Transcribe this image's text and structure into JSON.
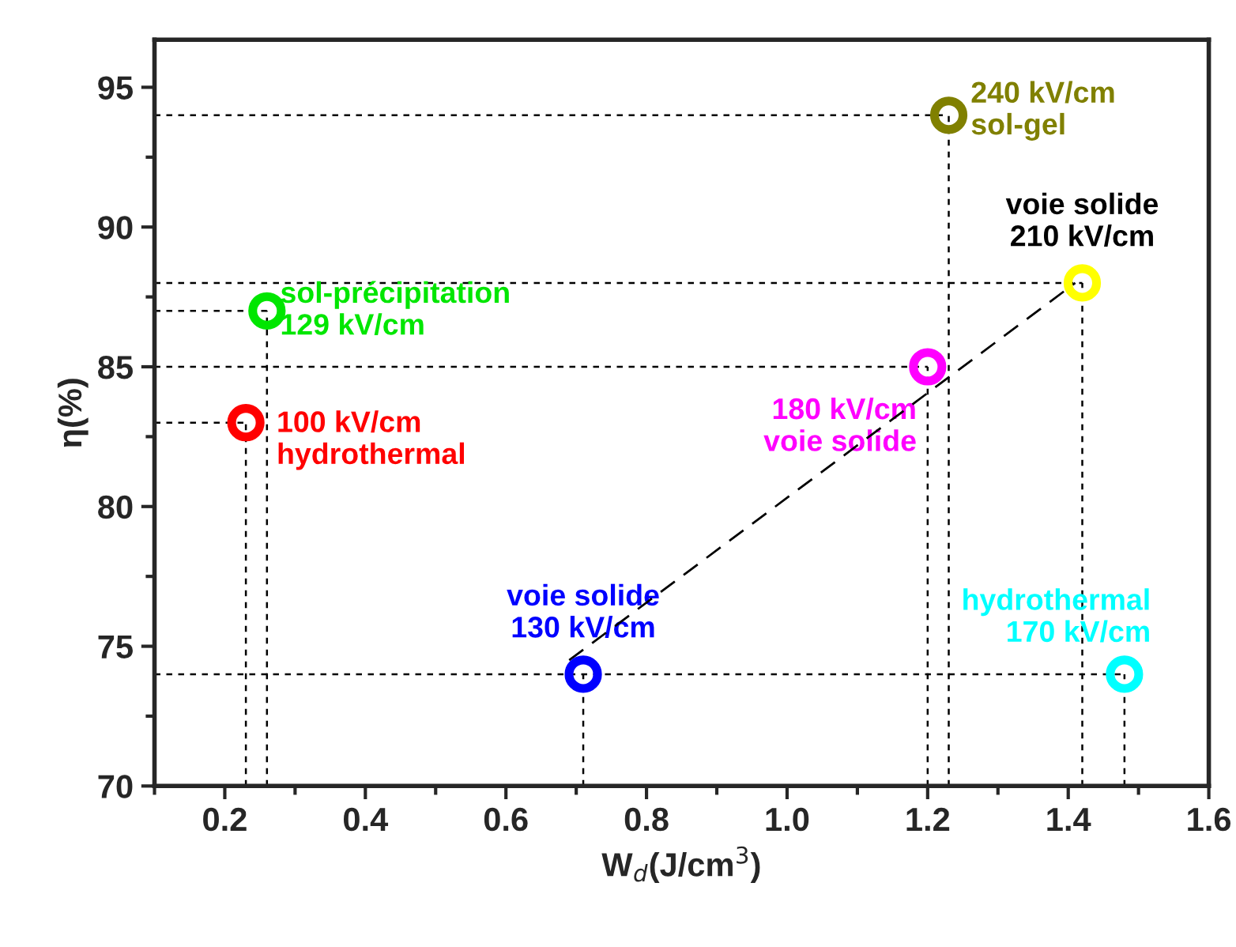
{
  "chart_data": {
    "type": "scatter",
    "xlabel": "W$_{d}$(J/cm$^{3}$)",
    "ylabel": "η(%)",
    "xlim": [
      0.1,
      1.6
    ],
    "xticks": [
      {
        "value": 0.2,
        "label": "0.2"
      },
      {
        "value": 0.4,
        "label": "0.4"
      },
      {
        "value": 0.6,
        "label": "0.6"
      },
      {
        "value": 0.8,
        "label": "0.8"
      },
      {
        "value": 1.0,
        "label": "1.0"
      },
      {
        "value": 1.2,
        "label": "1.2"
      },
      {
        "value": 1.4,
        "label": "1.4"
      },
      {
        "value": 1.6,
        "label": "1.6"
      }
    ],
    "ylim": [
      70,
      96.7
    ],
    "yticks": [
      70,
      75,
      80,
      85,
      90,
      95
    ],
    "marker": "circle",
    "legend": false,
    "ref_lines": [
      {
        "axis": "y",
        "value": 83,
        "color": "#000000",
        "line_style": "dotted"
      },
      {
        "axis": "y",
        "value": 87,
        "color": "#000000",
        "line_style": "dotted"
      },
      {
        "axis": "y",
        "value": 74,
        "color": "#000000",
        "line_style": "dotted"
      },
      {
        "axis": "y",
        "value": 85,
        "color": "#000000",
        "line_style": "dotted"
      },
      {
        "axis": "y",
        "value": 94,
        "color": "#000000",
        "line_style": "dotted"
      },
      {
        "axis": "y",
        "value": 88,
        "color": "#000000",
        "line_style": "dotted"
      },
      {
        "axis": "x",
        "value": 0.23,
        "color": "#000000",
        "line_style": "dotted"
      },
      {
        "axis": "x",
        "value": 0.26,
        "color": "#000000",
        "line_style": "dotted"
      },
      {
        "axis": "x",
        "value": 0.71,
        "color": "#000000",
        "line_style": "dotted"
      },
      {
        "axis": "x",
        "value": 1.2,
        "color": "#000000",
        "line_style": "dotted"
      },
      {
        "axis": "x",
        "value": 1.23,
        "color": "#000000",
        "line_style": "dotted"
      },
      {
        "axis": "x",
        "value": 1.42,
        "color": "#000000",
        "line_style": "dotted"
      },
      {
        "axis": "x",
        "value": 1.48,
        "color": "#000000",
        "line_style": "dotted"
      }
    ],
    "series": [
      {
        "name": "100 kV/cm\nhydrothermal",
        "color": "#ff0000",
        "x": [
          0.23
        ],
        "values": [
          83
        ]
      },
      {
        "name": "sol-précipitation\n129 kV/cm",
        "color": "#00e600",
        "x": [
          0.26
        ],
        "values": [
          87
        ]
      },
      {
        "name": "voie solide\n130 kV/cm",
        "color": "#0000ff",
        "x": [
          0.71
        ],
        "values": [
          74
        ]
      },
      {
        "name": "180 kV/cm\nvoie solide",
        "color": "#ff00ff",
        "x": [
          1.2
        ],
        "values": [
          85
        ]
      },
      {
        "name": "240 kV/cm\nsol-gel",
        "color": "#808000",
        "x": [
          1.23
        ],
        "values": [
          94
        ]
      },
      {
        "color": "#ffff00",
        "x": [
          1.42
        ],
        "values": [
          88
        ]
      },
      {
        "name": "hydrothermal\n170 kV/cm",
        "color": "#00ffff",
        "x": [
          1.48
        ],
        "values": [
          74
        ]
      },
      {
        "type": "line",
        "color": "#000000",
        "line_style": "dashed",
        "marker": "none",
        "x": [
          0.69,
          1.41
        ],
        "values": [
          74.5,
          88
        ]
      }
    ],
    "annotations": [
      {
        "text": "voie solide\n210 kV/cm",
        "x": 1.42,
        "y": 88
      }
    ]
  }
}
